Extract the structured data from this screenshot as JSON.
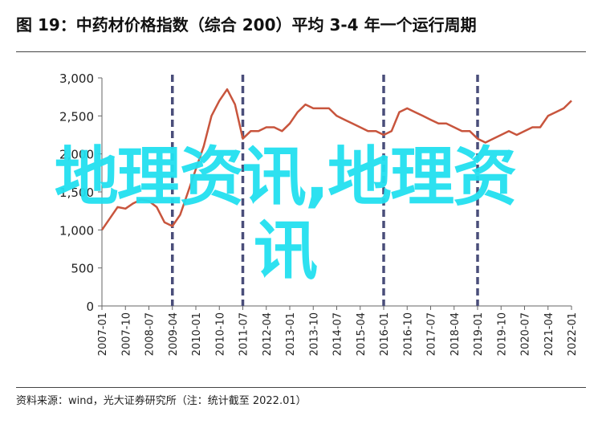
{
  "header": {
    "title": "图 19：中药材价格指数（综合 200）平均 3-4 年一个运行周期"
  },
  "footer": {
    "source": "资料来源：wind，光大证券研究所（注：统计截至 2022.01）"
  },
  "watermark": {
    "text": "地理资讯,地理资讯"
  },
  "chart_data": {
    "type": "line",
    "title": "图 19：中药材价格指数（综合 200）平均 3-4 年一个运行周期",
    "xlabel": "",
    "ylabel": "",
    "x_ticks": [
      "2007-01",
      "2007-10",
      "2008-07",
      "2009-04",
      "2010-01",
      "2010-10",
      "2011-07",
      "2012-04",
      "2013-01",
      "2013-10",
      "2014-07",
      "2015-04",
      "2016-01",
      "2016-10",
      "2017-07",
      "2018-04",
      "2019-01",
      "2019-10",
      "2020-07",
      "2021-04",
      "2022-01"
    ],
    "y_ticks": [
      "0",
      "500",
      "1,000",
      "1,500",
      "2,000",
      "2,500",
      "3,000"
    ],
    "xlim": [
      "2007-01",
      "2022-01"
    ],
    "ylim": [
      0,
      3000
    ],
    "grid": false,
    "line_color": "#c8553d",
    "cycle_marker_color": "#4a4e7a",
    "cycle_markers": [
      "2009-04",
      "2011-07",
      "2016-01",
      "2019-01"
    ],
    "series": [
      {
        "x": [
          "2007-01",
          "2007-04",
          "2007-07",
          "2007-10",
          "2008-01",
          "2008-04",
          "2008-07",
          "2008-10",
          "2009-01",
          "2009-04",
          "2009-07",
          "2009-10",
          "2010-01",
          "2010-04",
          "2010-07",
          "2010-10",
          "2011-01",
          "2011-04",
          "2011-07",
          "2011-10",
          "2012-01",
          "2012-04",
          "2012-07",
          "2012-10",
          "2013-01",
          "2013-04",
          "2013-07",
          "2013-10",
          "2014-01",
          "2014-04",
          "2014-07",
          "2014-10",
          "2015-01",
          "2015-04",
          "2015-07",
          "2015-10",
          "2016-01",
          "2016-04",
          "2016-07",
          "2016-10",
          "2017-01",
          "2017-04",
          "2017-07",
          "2017-10",
          "2018-01",
          "2018-04",
          "2018-07",
          "2018-10",
          "2019-01",
          "2019-04",
          "2019-07",
          "2019-10",
          "2020-01",
          "2020-04",
          "2020-07",
          "2020-10",
          "2021-01",
          "2021-04",
          "2021-07",
          "2021-10",
          "2022-01"
        ],
        "values": [
          1000,
          1150,
          1300,
          1280,
          1350,
          1400,
          1380,
          1300,
          1100,
          1050,
          1200,
          1500,
          1800,
          2100,
          2500,
          2700,
          2850,
          2650,
          2200,
          2300,
          2300,
          2350,
          2350,
          2300,
          2400,
          2550,
          2650,
          2600,
          2600,
          2600,
          2500,
          2450,
          2400,
          2350,
          2300,
          2300,
          2250,
          2300,
          2550,
          2600,
          2550,
          2500,
          2450,
          2400,
          2400,
          2350,
          2300,
          2300,
          2200,
          2150,
          2200,
          2250,
          2300,
          2250,
          2300,
          2350,
          2350,
          2500,
          2550,
          2600,
          2700
        ]
      }
    ]
  }
}
